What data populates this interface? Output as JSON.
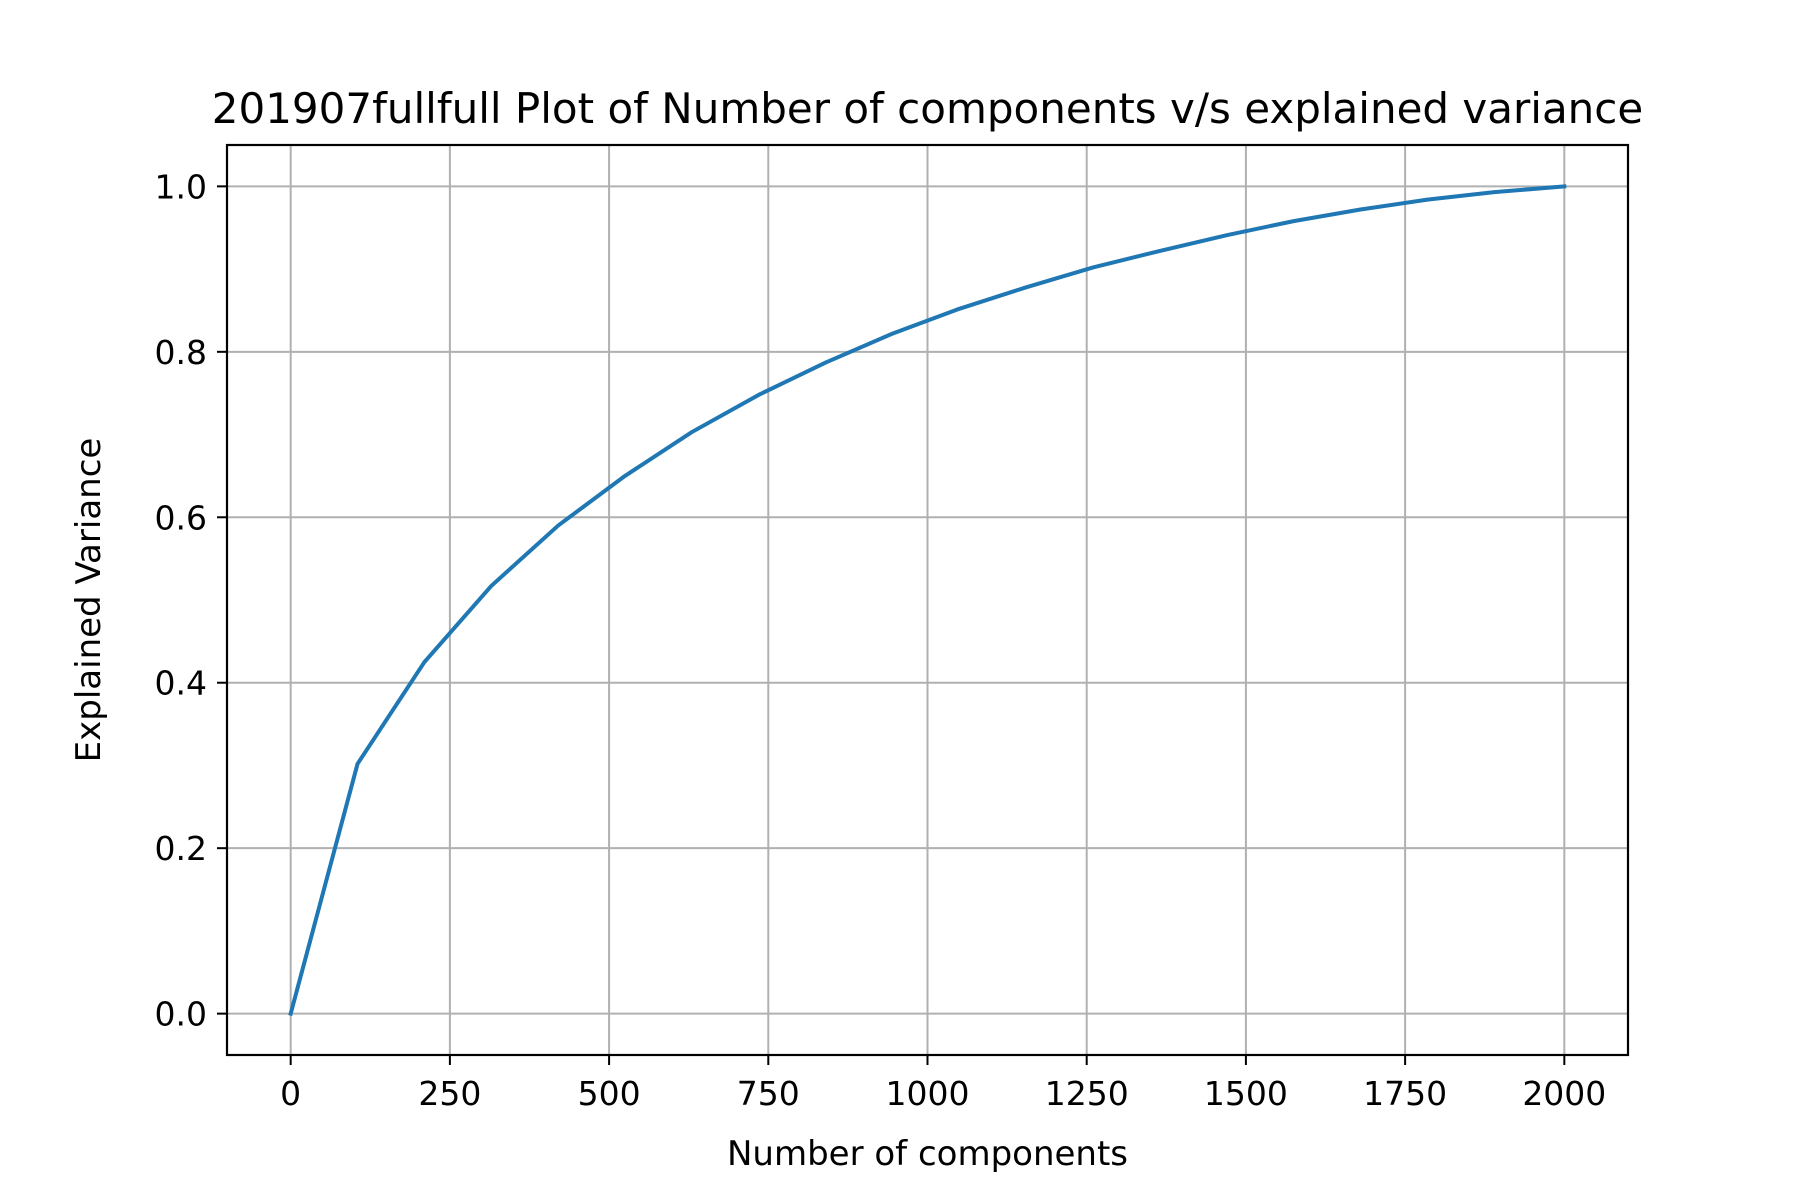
{
  "chart_data": {
    "type": "line",
    "title": "201907fullfull Plot of Number of components v/s explained variance",
    "xlabel": "Number of components",
    "ylabel": "Explained Variance",
    "xlim": [
      -100,
      2100
    ],
    "ylim": [
      -0.05,
      1.05
    ],
    "xticks": [
      0,
      250,
      500,
      750,
      1000,
      1250,
      1500,
      1750,
      2000
    ],
    "xtick_labels": [
      "0",
      "250",
      "500",
      "750",
      "1000",
      "1250",
      "1500",
      "1750",
      "2000"
    ],
    "yticks": [
      0.0,
      0.2,
      0.4,
      0.6,
      0.8,
      1.0
    ],
    "ytick_labels": [
      "0.0",
      "0.2",
      "0.4",
      "0.6",
      "0.8",
      "1.0"
    ],
    "grid": true,
    "series": [
      {
        "color": "#1f77b4",
        "x": [
          0,
          105,
          210,
          315,
          420,
          525,
          630,
          735,
          840,
          945,
          1050,
          1155,
          1260,
          1365,
          1470,
          1575,
          1680,
          1785,
          1890,
          2000
        ],
        "y": [
          0.0,
          0.302,
          0.425,
          0.517,
          0.59,
          0.65,
          0.703,
          0.748,
          0.787,
          0.822,
          0.852,
          0.878,
          0.902,
          0.922,
          0.941,
          0.958,
          0.972,
          0.984,
          0.993,
          1.0
        ]
      }
    ]
  },
  "colors": {
    "grid": "#b0b0b0",
    "axes": "#000000",
    "line": "#1f77b4"
  }
}
